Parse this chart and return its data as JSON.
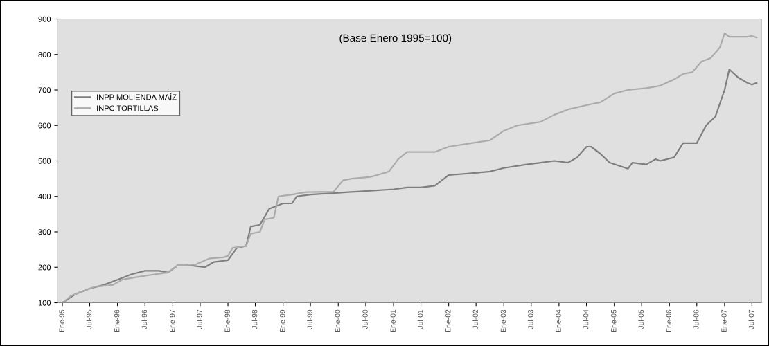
{
  "chart_data": {
    "type": "line",
    "annotations": [
      "(Base Enero 1995=100)"
    ],
    "xlim": [
      "1994-12",
      "2007-09"
    ],
    "xticks": [
      {
        "value": "1995-01",
        "label": "Ene-95"
      },
      {
        "value": "1995-07",
        "label": "Jul-95"
      },
      {
        "value": "1996-01",
        "label": "Ene-96"
      },
      {
        "value": "1996-07",
        "label": "Jul-96"
      },
      {
        "value": "1997-01",
        "label": "Ene-97"
      },
      {
        "value": "1997-07",
        "label": "Jul-97"
      },
      {
        "value": "1998-01",
        "label": "Ene-98"
      },
      {
        "value": "1998-07",
        "label": "Jul-98"
      },
      {
        "value": "1999-01",
        "label": "Ene-99"
      },
      {
        "value": "1999-07",
        "label": "Jul-99"
      },
      {
        "value": "2000-01",
        "label": "Ene-00"
      },
      {
        "value": "2000-07",
        "label": "Jul-00"
      },
      {
        "value": "2001-01",
        "label": "Ene-01"
      },
      {
        "value": "2001-07",
        "label": "Jul-01"
      },
      {
        "value": "2002-01",
        "label": "Ene-02"
      },
      {
        "value": "2002-07",
        "label": "Jul-02"
      },
      {
        "value": "2003-01",
        "label": "Ene-03"
      },
      {
        "value": "2003-07",
        "label": "Jul-03"
      },
      {
        "value": "2004-01",
        "label": "Ene-04"
      },
      {
        "value": "2004-07",
        "label": "Jul-04"
      },
      {
        "value": "2005-01",
        "label": "Ene-05"
      },
      {
        "value": "2005-07",
        "label": "Jul-05"
      },
      {
        "value": "2006-01",
        "label": "Ene-06"
      },
      {
        "value": "2006-07",
        "label": "Jul-06"
      },
      {
        "value": "2007-01",
        "label": "Ene-07"
      },
      {
        "value": "2007-07",
        "label": "Jul-07"
      }
    ],
    "ylim": [
      100,
      900
    ],
    "yticks": [
      100,
      200,
      300,
      400,
      500,
      600,
      700,
      800,
      900
    ],
    "grid": false,
    "legend": "top left",
    "series": [
      {
        "name": "INPP MOLIENDA MAÍZ",
        "color": "#7f7f7f",
        "x": [
          "1995-01",
          "1995-04",
          "1995-07",
          "1995-10",
          "1996-01",
          "1996-04",
          "1996-07",
          "1996-10",
          "1996-12",
          "1997-02",
          "1997-05",
          "1997-08",
          "1997-10",
          "1998-01",
          "1998-03",
          "1998-05",
          "1998-06",
          "1998-08",
          "1998-10",
          "1998-12",
          "1999-01",
          "1999-03",
          "1999-04",
          "1999-07",
          "2000-01",
          "2000-07",
          "2001-01",
          "2001-04",
          "2001-07",
          "2001-10",
          "2002-01",
          "2002-06",
          "2002-10",
          "2003-01",
          "2003-06",
          "2003-09",
          "2003-12",
          "2004-03",
          "2004-05",
          "2004-07",
          "2004-08",
          "2004-10",
          "2004-12",
          "2005-04",
          "2005-05",
          "2005-08",
          "2005-10",
          "2005-11",
          "2006-02",
          "2006-04",
          "2006-07",
          "2006-09",
          "2006-11",
          "2007-01",
          "2007-02",
          "2007-04",
          "2007-06",
          "2007-07",
          "2007-08"
        ],
        "values": [
          100,
          125,
          140,
          150,
          165,
          180,
          190,
          190,
          185,
          205,
          205,
          200,
          215,
          220,
          255,
          260,
          315,
          320,
          365,
          375,
          380,
          380,
          400,
          405,
          410,
          415,
          420,
          425,
          425,
          430,
          460,
          465,
          470,
          480,
          490,
          495,
          500,
          495,
          510,
          540,
          540,
          520,
          495,
          478,
          495,
          490,
          505,
          500,
          510,
          550,
          550,
          600,
          625,
          700,
          758,
          735,
          720,
          715,
          720
        ]
      },
      {
        "name": "INPC TORTILLAS",
        "color": "#ababab",
        "x": [
          "1995-01",
          "1995-03",
          "1995-05",
          "1995-08",
          "1995-12",
          "1996-02",
          "1996-05",
          "1996-09",
          "1996-12",
          "1997-02",
          "1997-06",
          "1997-09",
          "1997-12",
          "1998-01",
          "1998-02",
          "1998-05",
          "1998-06",
          "1998-08",
          "1998-09",
          "1998-11",
          "1998-12",
          "1999-03",
          "1999-06",
          "1999-12",
          "2000-02",
          "2000-04",
          "2000-08",
          "2000-10",
          "2000-12",
          "2001-02",
          "2001-04",
          "2001-10",
          "2002-01",
          "2002-06",
          "2002-10",
          "2003-01",
          "2003-04",
          "2003-09",
          "2003-12",
          "2004-03",
          "2004-08",
          "2004-10",
          "2005-01",
          "2005-04",
          "2005-08",
          "2005-11",
          "2006-02",
          "2006-04",
          "2006-06",
          "2006-08",
          "2006-10",
          "2006-12",
          "2007-01",
          "2007-02",
          "2007-06",
          "2007-07",
          "2007-08"
        ],
        "values": [
          100,
          120,
          130,
          145,
          150,
          165,
          172,
          180,
          185,
          205,
          208,
          225,
          228,
          232,
          255,
          260,
          295,
          300,
          335,
          340,
          400,
          405,
          412,
          413,
          445,
          450,
          455,
          462,
          470,
          505,
          525,
          525,
          540,
          550,
          558,
          585,
          600,
          610,
          630,
          645,
          660,
          665,
          690,
          700,
          705,
          712,
          730,
          745,
          750,
          780,
          790,
          820,
          860,
          850,
          850,
          852,
          848
        ]
      }
    ]
  }
}
